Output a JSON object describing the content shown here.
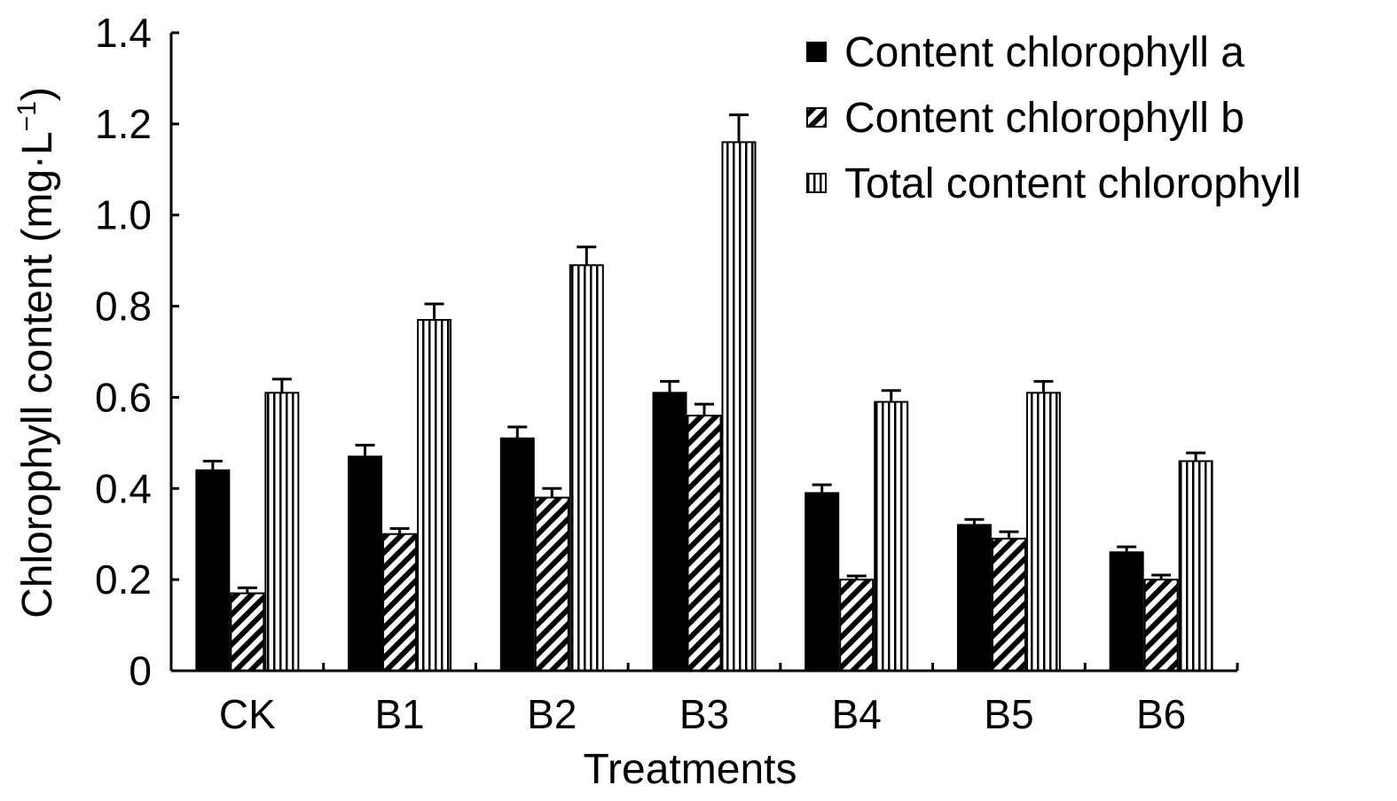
{
  "chart_data": {
    "type": "bar",
    "title": "",
    "xlabel": "Treatments",
    "ylabel": "Chlorophyll content (mg·L",
    "ylabel_superscript": "−1",
    "ylabel_close": ")",
    "categories": [
      "CK",
      "B1",
      "B2",
      "B3",
      "B4",
      "B5",
      "B6"
    ],
    "ylim": [
      0,
      1.4
    ],
    "yticks": [
      "0",
      "0.2",
      "0.4",
      "0.6",
      "0.8",
      "1.0",
      "1.2",
      "1.4"
    ],
    "grid": false,
    "legend_position": "top-right",
    "series": [
      {
        "name": "Content chlorophyll a",
        "pattern": "solid",
        "values": [
          0.44,
          0.47,
          0.51,
          0.61,
          0.39,
          0.32,
          0.26
        ],
        "errors": [
          0.02,
          0.025,
          0.025,
          0.025,
          0.018,
          0.012,
          0.012
        ]
      },
      {
        "name": "Content chlorophyll b",
        "pattern": "diagonal",
        "values": [
          0.17,
          0.3,
          0.38,
          0.56,
          0.2,
          0.29,
          0.2
        ],
        "errors": [
          0.012,
          0.012,
          0.02,
          0.025,
          0.008,
          0.015,
          0.01
        ]
      },
      {
        "name": "Total content chlorophyll",
        "pattern": "vertical",
        "values": [
          0.61,
          0.77,
          0.89,
          1.16,
          0.59,
          0.61,
          0.46
        ],
        "errors": [
          0.03,
          0.035,
          0.04,
          0.06,
          0.025,
          0.025,
          0.018
        ]
      }
    ],
    "colors": {
      "ink": "#000000",
      "background": "#ffffff"
    }
  }
}
